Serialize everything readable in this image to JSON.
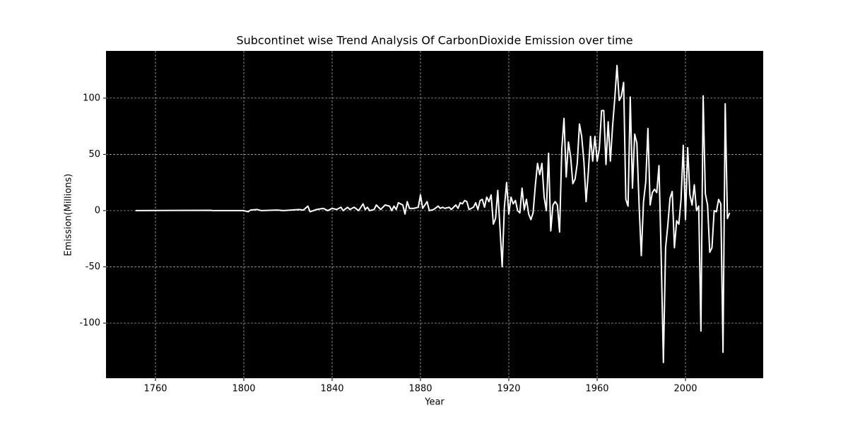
{
  "chart_data": {
    "type": "line",
    "title": "Subcontinet wise Trend Analysis Of CarbonDioxide Emission over time",
    "xlabel": "Year",
    "ylabel": "Emission(Millions)",
    "color": "#ffffff",
    "background": "#000000",
    "grid": true,
    "xlim": [
      1737.6,
      2035.2
    ],
    "xticks": [
      1760,
      1800,
      1840,
      1880,
      1920,
      1960,
      2000
    ],
    "ylim": [
      -149,
      142
    ],
    "yticks": [
      -100,
      -50,
      0,
      50,
      100
    ],
    "x": [
      1751,
      1785,
      1786,
      1800,
      1802,
      1803,
      1806,
      1808,
      1815,
      1818,
      1825,
      1827,
      1829,
      1830,
      1833,
      1836,
      1838,
      1840,
      1842,
      1844,
      1845,
      1847,
      1848,
      1850,
      1852,
      1854,
      1855,
      1856,
      1857,
      1859,
      1860,
      1862,
      1864,
      1866,
      1867,
      1868,
      1869,
      1870,
      1872,
      1873,
      1874,
      1875,
      1877,
      1879,
      1880,
      1881,
      1883,
      1884,
      1886,
      1888,
      1889,
      1890,
      1891,
      1893,
      1894,
      1896,
      1897,
      1898,
      1899,
      1900,
      1901,
      1902,
      1904,
      1905,
      1906,
      1907,
      1908,
      1909,
      1910,
      1911,
      1912,
      1913,
      1914,
      1915,
      1916,
      1917,
      1918,
      1919,
      1920,
      1921,
      1922,
      1923,
      1924,
      1925,
      1926,
      1927,
      1928,
      1929,
      1930,
      1931,
      1932,
      1933,
      1934,
      1935,
      1936,
      1937,
      1938,
      1939,
      1940,
      1941,
      1942,
      1943,
      1944,
      1945,
      1946,
      1947,
      1948,
      1949,
      1950,
      1951,
      1952,
      1953,
      1954,
      1955,
      1956,
      1957,
      1958,
      1959,
      1960,
      1961,
      1962,
      1963,
      1964,
      1965,
      1966,
      1967,
      1968,
      1969,
      1970,
      1971,
      1972,
      1973,
      1974,
      1975,
      1976,
      1977,
      1978,
      1979,
      1980,
      1981,
      1982,
      1983,
      1984,
      1985,
      1986,
      1987,
      1988,
      1989,
      1990,
      1991,
      1992,
      1993,
      1994,
      1995,
      1996,
      1997,
      1998,
      1999,
      2000,
      2001,
      2002,
      2003,
      2004,
      2005,
      2006,
      2007,
      2008,
      2009,
      2010,
      2011,
      2012,
      2013,
      2014,
      2015,
      2016,
      2017,
      2018,
      2019,
      2020
    ],
    "values": [
      0,
      0.3,
      0,
      0,
      -1,
      0.5,
      1,
      0,
      0.5,
      0,
      1,
      0.5,
      4,
      -1,
      1,
      2,
      0,
      2,
      1,
      3,
      0,
      3,
      1,
      3,
      0,
      6,
      1,
      3,
      0,
      1,
      5,
      1,
      5,
      4,
      0,
      4,
      1,
      7,
      5,
      -3,
      8,
      2,
      2,
      3,
      14,
      2,
      8,
      0,
      1,
      4,
      2,
      3,
      2,
      3,
      1,
      5,
      2,
      7,
      6,
      9,
      8,
      1,
      3,
      7,
      1,
      9,
      10,
      3,
      12,
      8,
      14,
      -12,
      -7,
      18,
      -15,
      -50,
      3,
      25,
      -3,
      12,
      6,
      9,
      0,
      -2,
      20,
      1,
      10,
      -3,
      -8,
      -2,
      22,
      42,
      32,
      42,
      12,
      0,
      51,
      -18,
      5,
      8,
      5,
      -19,
      55,
      82,
      30,
      61,
      48,
      24,
      28,
      42,
      77,
      66,
      44,
      8,
      34,
      66,
      44,
      66,
      44,
      55,
      89,
      89,
      41,
      79,
      44,
      75,
      100,
      129,
      98,
      102,
      114,
      10,
      4,
      101,
      20,
      68,
      60,
      5,
      -40,
      8,
      25,
      73,
      5,
      16,
      19,
      16,
      40,
      -40,
      -135,
      -33,
      -13,
      11,
      17,
      -33,
      -9,
      -12,
      10,
      58,
      -8,
      56,
      14,
      5,
      23,
      0,
      4,
      -107,
      102,
      15,
      5,
      -37,
      -33,
      0,
      -1,
      10,
      6,
      -126,
      95,
      -7,
      -2
    ]
  }
}
